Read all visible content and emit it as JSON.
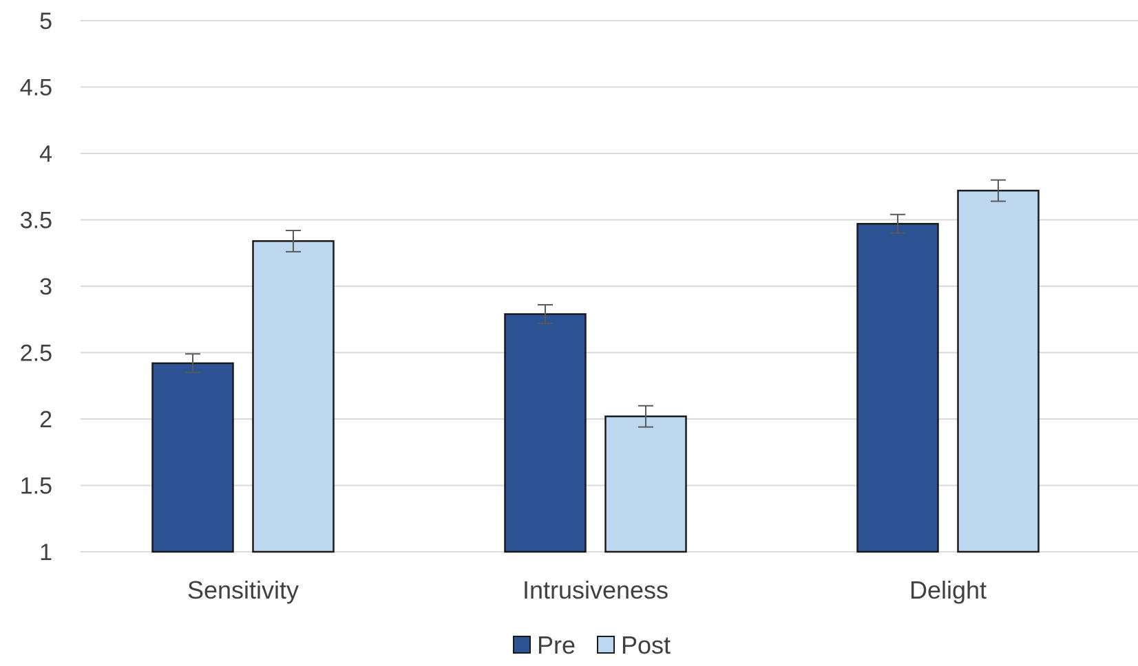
{
  "chart_data": {
    "type": "bar",
    "title": "",
    "xlabel": "",
    "ylabel": "",
    "categories": [
      "Sensitivity",
      "Intrusiveness",
      "Delight"
    ],
    "series": [
      {
        "name": "Pre",
        "color": "#2e5395",
        "values": [
          2.42,
          2.79,
          3.47
        ],
        "error": [
          0.07,
          0.07,
          0.07
        ]
      },
      {
        "name": "Post",
        "color": "#bdd7ee",
        "values": [
          3.34,
          2.02,
          3.72
        ],
        "error": [
          0.08,
          0.08,
          0.08
        ]
      }
    ],
    "ylim": [
      1,
      5
    ],
    "yticks": [
      "1",
      "1.5",
      "2",
      "2.5",
      "3",
      "3.5",
      "4",
      "4.5",
      "5"
    ],
    "grid": true,
    "legend_position": "bottom",
    "error_bars": true,
    "bar_border_color": "#1a1a1a",
    "grid_color": "#d9d9d9",
    "error_bar_color": "#595959"
  }
}
